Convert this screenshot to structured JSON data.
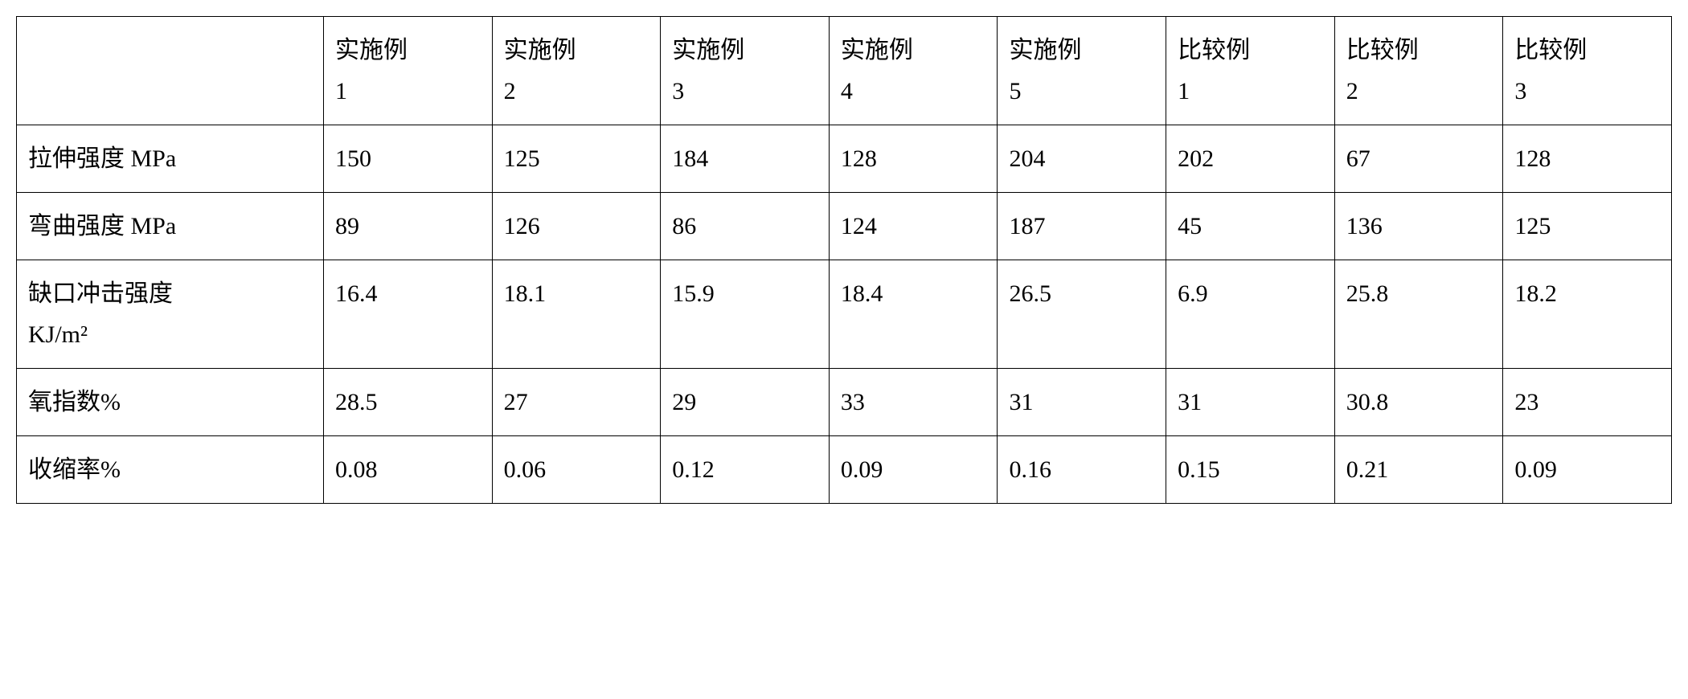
{
  "table": {
    "columns": [
      {
        "line1": "实施例",
        "line2": "1"
      },
      {
        "line1": "实施例",
        "line2": "2"
      },
      {
        "line1": "实施例",
        "line2": "3"
      },
      {
        "line1": "实施例",
        "line2": "4"
      },
      {
        "line1": "实施例",
        "line2": "5"
      },
      {
        "line1": "比较例",
        "line2": "1"
      },
      {
        "line1": "比较例",
        "line2": "2"
      },
      {
        "line1": "比较例",
        "line2": "3"
      }
    ],
    "rows": [
      {
        "header_line1": "拉伸强度 MPa",
        "header_line2": "",
        "values": [
          "150",
          "125",
          "184",
          "128",
          "204",
          "202",
          "67",
          "128"
        ]
      },
      {
        "header_line1": "弯曲强度 MPa",
        "header_line2": "",
        "values": [
          "89",
          "126",
          "86",
          "124",
          "187",
          "45",
          "136",
          "125"
        ]
      },
      {
        "header_line1": "缺口冲击强度",
        "header_line2": "KJ/m²",
        "values": [
          "16.4",
          "18.1",
          "15.9",
          "18.4",
          "26.5",
          "6.9",
          "25.8",
          "18.2"
        ]
      },
      {
        "header_line1": "氧指数%",
        "header_line2": "",
        "values": [
          "28.5",
          "27",
          "29",
          "33",
          "31",
          "31",
          "30.8",
          "23"
        ]
      },
      {
        "header_line1": "收缩率%",
        "header_line2": "",
        "values": [
          "0.08",
          "0.06",
          "0.12",
          "0.09",
          "0.16",
          "0.15",
          "0.21",
          "0.09"
        ]
      }
    ]
  }
}
